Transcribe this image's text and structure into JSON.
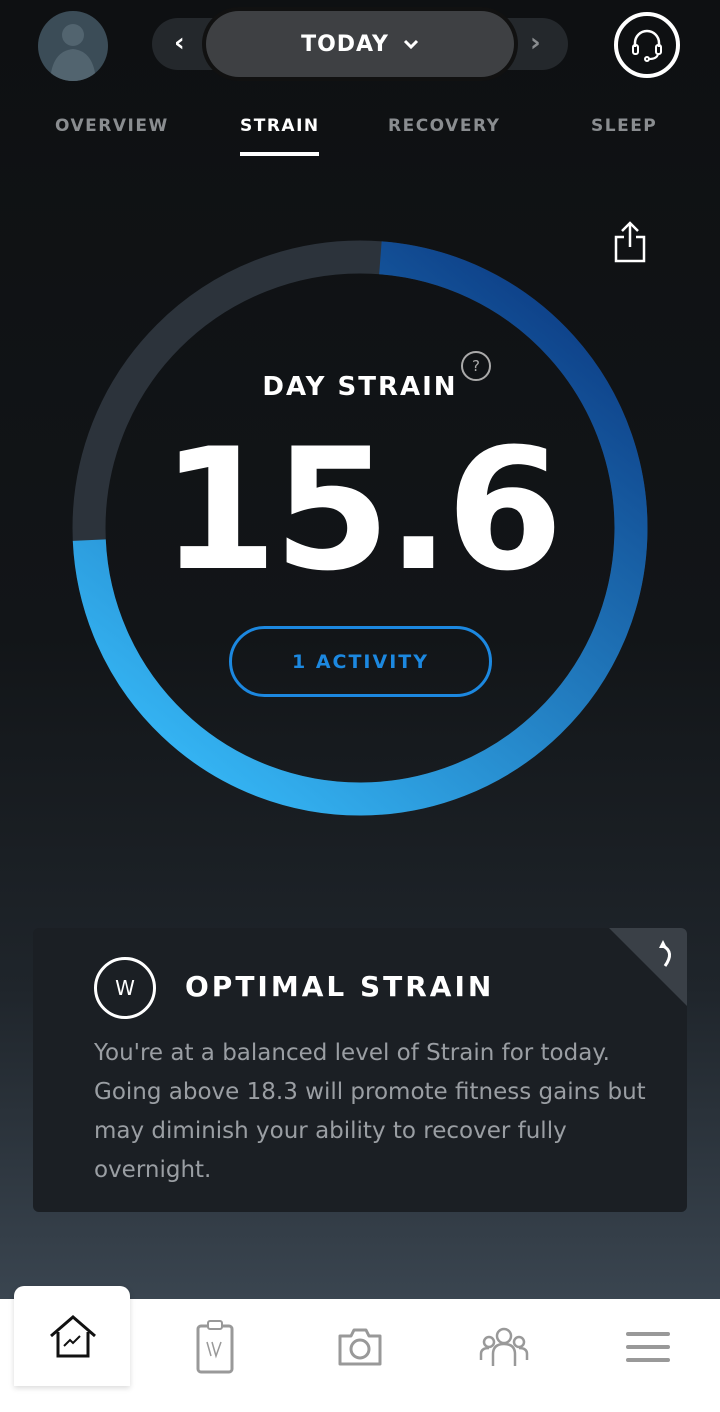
{
  "header": {
    "date_label": "TODAY",
    "prev_icon": "chevron-left-icon",
    "next_icon": "chevron-right-icon",
    "dropdown_icon": "chevron-down-icon",
    "support_icon": "headset-icon"
  },
  "tabs": [
    {
      "label": "OVERVIEW"
    },
    {
      "label": "STRAIN",
      "active": true
    },
    {
      "label": "RECOVERY"
    },
    {
      "label": "SLEEP"
    }
  ],
  "strain": {
    "title": "DAY STRAIN",
    "value": "15.6",
    "max": 21,
    "activity_button": "1 ACTIVITY",
    "help": "?",
    "colors": {
      "track": "#2c333b",
      "arc_start": "#0d3e86",
      "arc_end": "#35b6f5"
    }
  },
  "card": {
    "title": "OPTIMAL STRAIN",
    "logo": "W",
    "body": "You're at a balanced level of Strain for today. Going above 18.3 will promote fitness gains but may diminish your ability to recover fully overnight."
  },
  "nav": {
    "items": [
      {
        "icon": "home-chart-icon",
        "active": true
      },
      {
        "icon": "clipboard-icon"
      },
      {
        "icon": "camera-icon"
      },
      {
        "icon": "team-icon"
      },
      {
        "icon": "menu-icon"
      }
    ]
  }
}
